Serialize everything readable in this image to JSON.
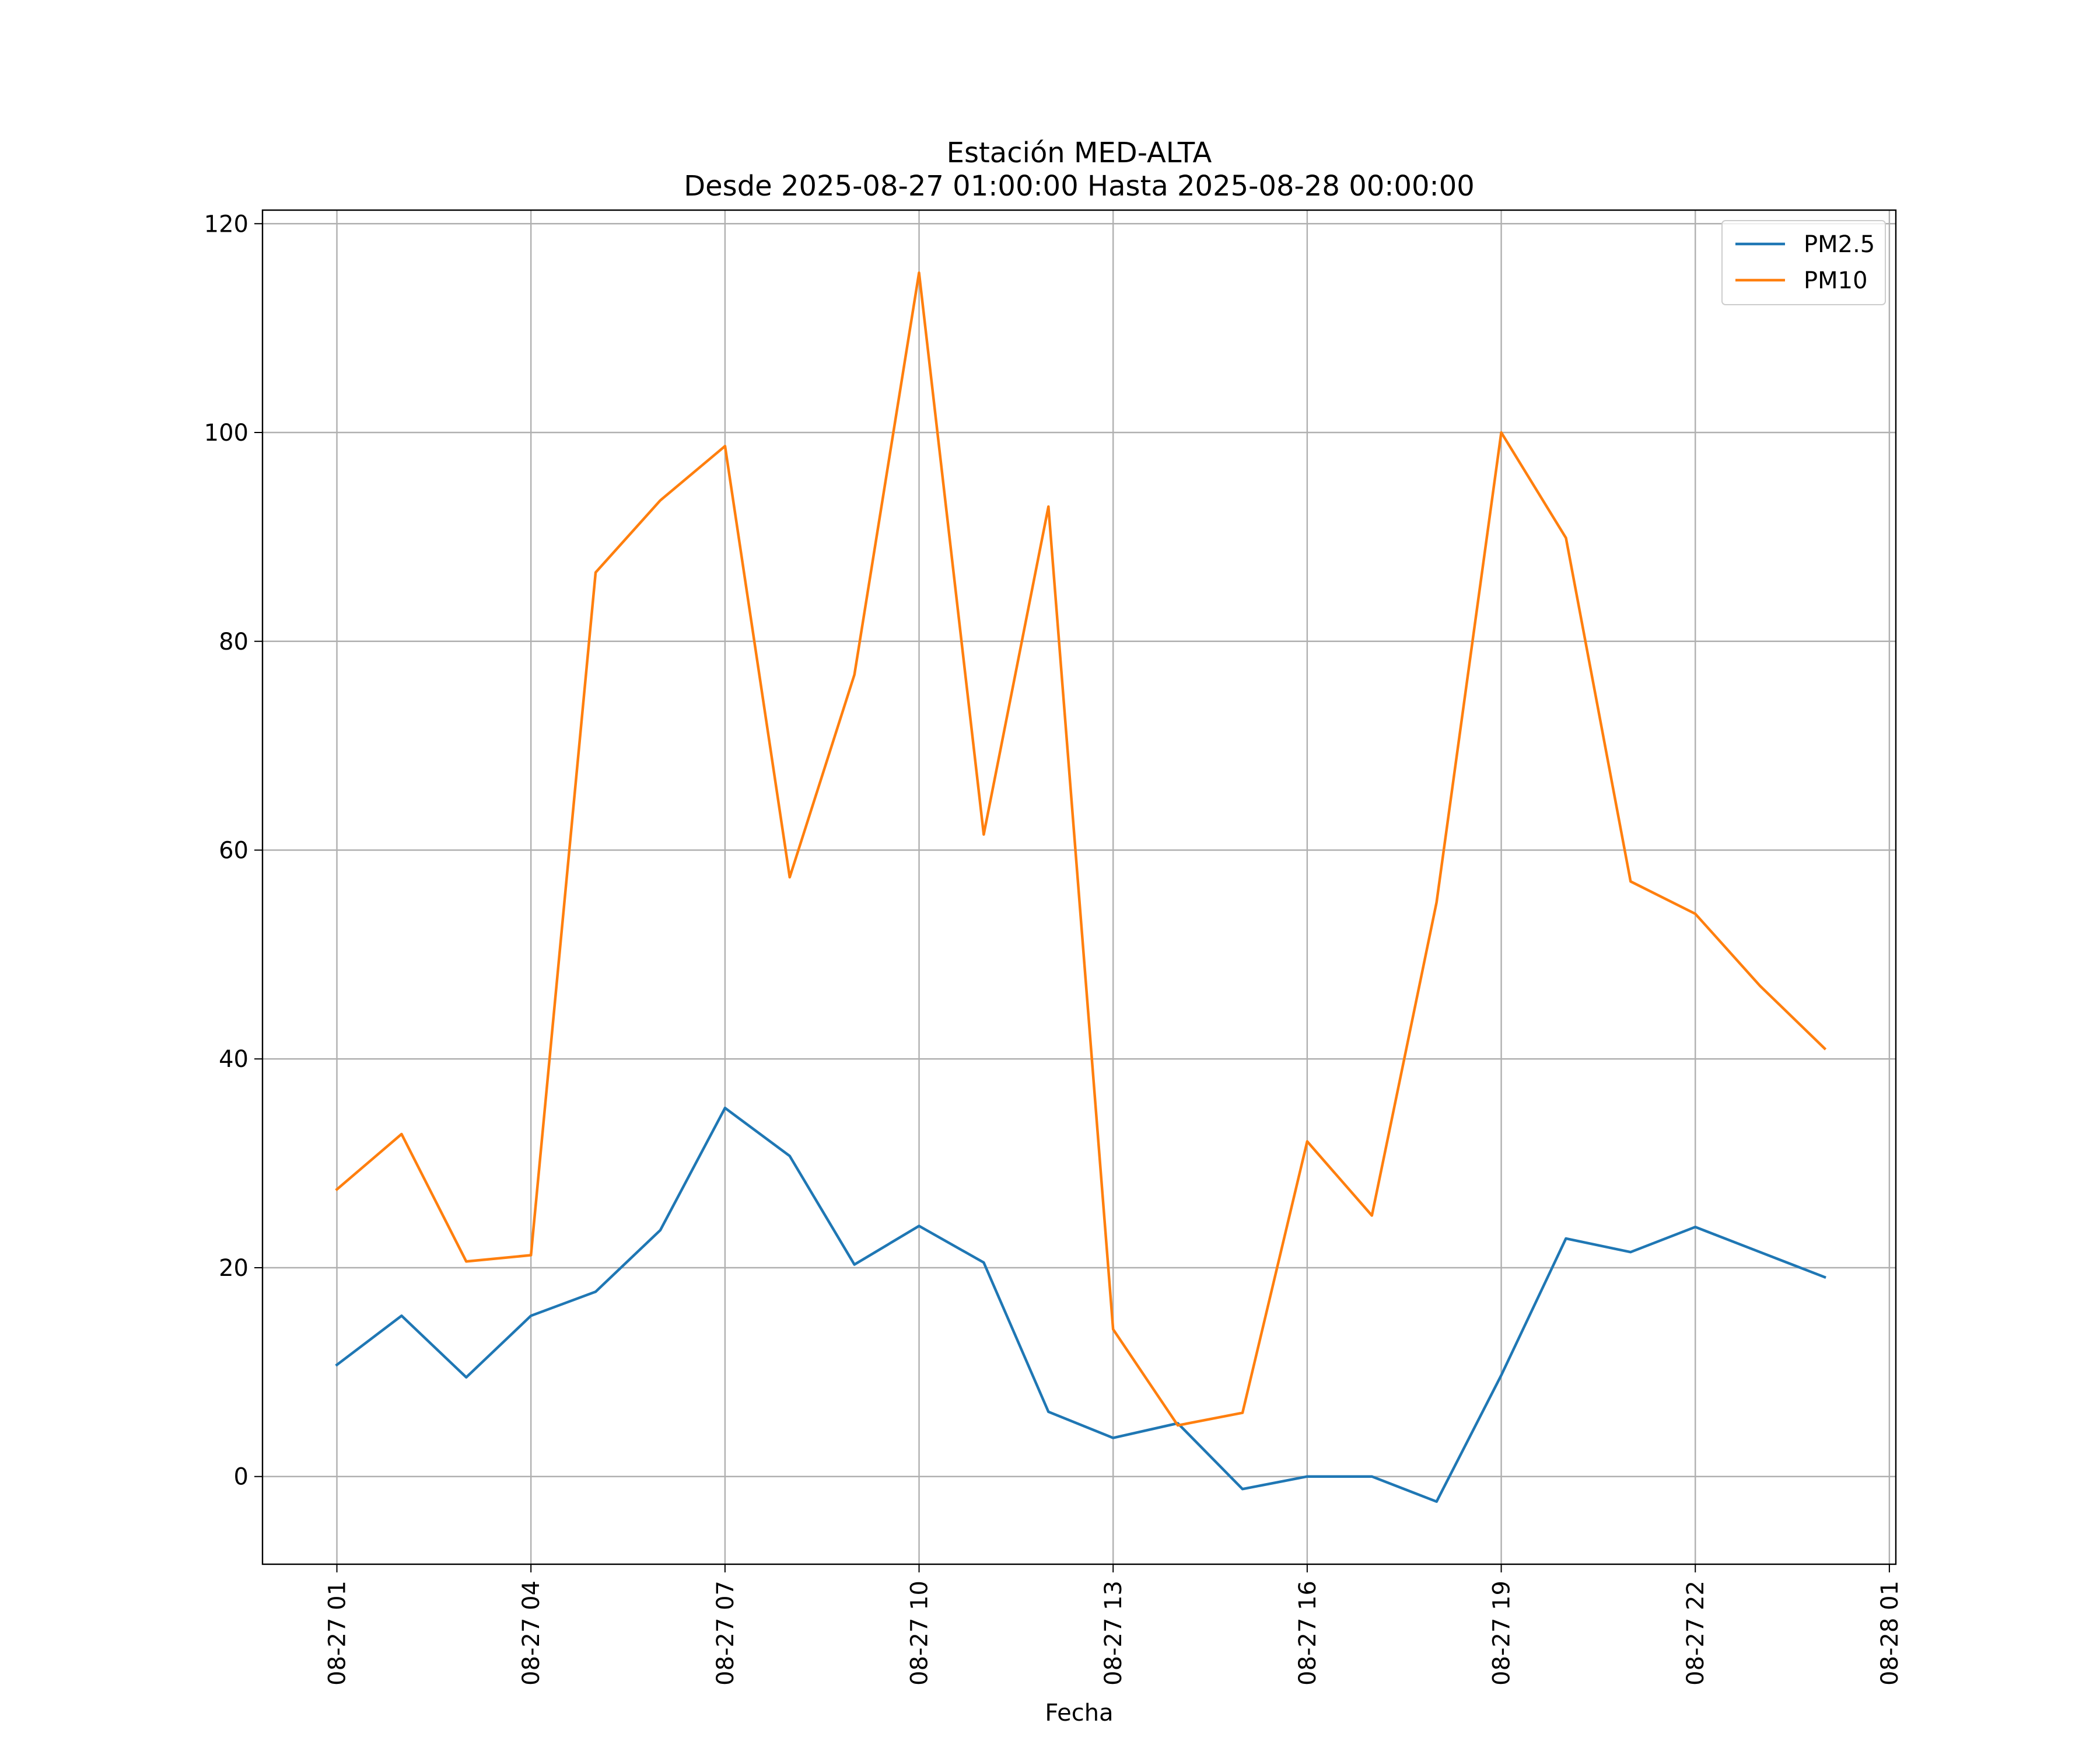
{
  "chart_data": {
    "type": "line",
    "title": "Estación MED-ALTA",
    "subtitle": "Desde 2025-08-27 01:00:00 Hasta 2025-08-28 00:00:00",
    "xlabel": "Fecha",
    "ylabel": "",
    "x": [
      "08-27 01",
      "08-27 02",
      "08-27 03",
      "08-27 04",
      "08-27 05",
      "08-27 06",
      "08-27 07",
      "08-27 08",
      "08-27 09",
      "08-27 10",
      "08-27 11",
      "08-27 12",
      "08-27 13",
      "08-27 14",
      "08-27 15",
      "08-27 16",
      "08-27 17",
      "08-27 18",
      "08-27 19",
      "08-27 20",
      "08-27 21",
      "08-27 22",
      "08-27 23",
      "08-28 00"
    ],
    "x_hours": [
      1,
      2,
      3,
      4,
      5,
      6,
      7,
      8,
      9,
      10,
      11,
      12,
      13,
      14,
      15,
      16,
      17,
      18,
      19,
      20,
      21,
      22,
      23,
      24
    ],
    "xlim_hours": [
      -0.15,
      25.1
    ],
    "xticks": [
      {
        "label": "08-27 01",
        "hour": 1
      },
      {
        "label": "08-27 04",
        "hour": 4
      },
      {
        "label": "08-27 07",
        "hour": 7
      },
      {
        "label": "08-27 10",
        "hour": 10
      },
      {
        "label": "08-27 13",
        "hour": 13
      },
      {
        "label": "08-27 16",
        "hour": 16
      },
      {
        "label": "08-27 19",
        "hour": 19
      },
      {
        "label": "08-27 22",
        "hour": 22
      },
      {
        "label": "08-28 01",
        "hour": 25
      }
    ],
    "ylim": [
      -8.4,
      121.3
    ],
    "yticks": [
      0,
      20,
      40,
      60,
      80,
      100,
      120
    ],
    "grid": true,
    "legend_position": "top-right",
    "series": [
      {
        "name": "PM2.5",
        "color": "#1f77b4",
        "values": [
          10.7,
          15.4,
          9.5,
          15.4,
          17.7,
          23.6,
          35.3,
          30.7,
          20.3,
          24.0,
          20.5,
          6.2,
          3.7,
          5.1,
          -1.2,
          0.0,
          0.0,
          -2.4,
          9.7,
          22.8,
          21.5,
          23.9,
          21.5,
          19.1
        ]
      },
      {
        "name": "PM10",
        "color": "#ff7f0e",
        "values": [
          27.5,
          32.8,
          20.6,
          21.2,
          86.6,
          93.5,
          98.7,
          57.4,
          76.8,
          115.3,
          61.5,
          92.9,
          14.1,
          4.9,
          6.1,
          32.1,
          25.0,
          55.0,
          100.0,
          89.9,
          57.0,
          53.9,
          47.0,
          41.0
        ]
      }
    ]
  }
}
